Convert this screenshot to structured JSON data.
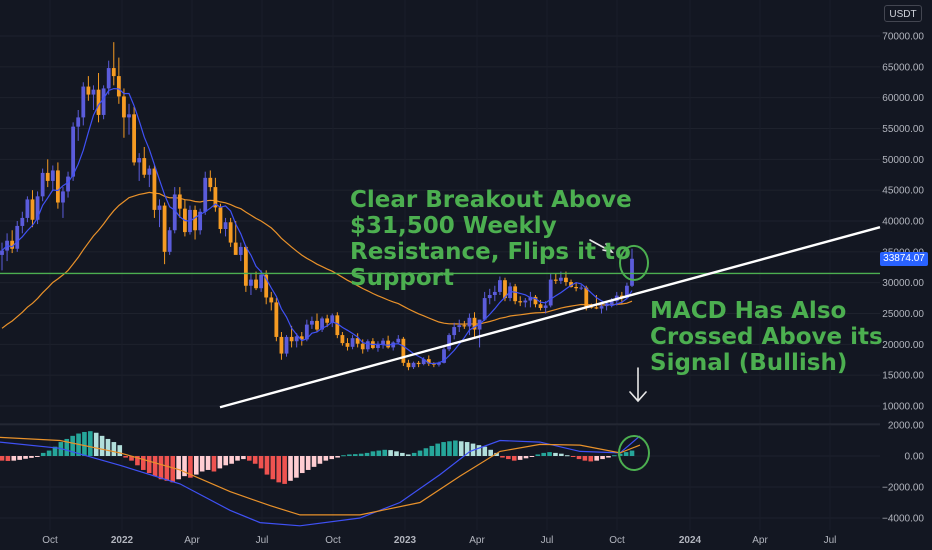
{
  "currency": "USDT",
  "current_price_label": "33874.07",
  "annotations": {
    "breakout": "Clear Breakout Above\n$31,500 Weekly\nResistance, Flips it to\nSupport",
    "macd": "MACD Has Also\nCrossed Above its\nSignal (Bullish)"
  },
  "colors": {
    "background": "#131722",
    "bull_candle": "#5b5cdb",
    "bear_candle": "#f59b23",
    "fast_ma": "#3f51f5",
    "slow_ma": "#e8912a",
    "resistance_line": "#4caf50",
    "trend_line": "#ffffff",
    "hist_up_strong": "#26a69a",
    "hist_up_weak": "#b2dfdb",
    "hist_down_strong": "#ef5350",
    "hist_down_weak": "#ffcdd2",
    "circle": "#4caf50"
  },
  "chart_data": [
    {
      "type": "candlestick",
      "x_tick_labels": [
        "Oct",
        "2022",
        "Apr",
        "Jul",
        "Oct",
        "2023",
        "Apr",
        "Jul",
        "Oct",
        "2024",
        "Apr",
        "Jul"
      ],
      "y_tick_labels": [
        "70000.00",
        "65000.00",
        "60000.00",
        "55000.00",
        "50000.00",
        "45000.00",
        "40000.00",
        "35000.00",
        "30000.00",
        "25000.00",
        "20000.00",
        "15000.00",
        "10000.00"
      ],
      "ylim": [
        6500,
        72000
      ],
      "resistance_level": 31500,
      "last_close": 33874.07,
      "candles_ohlc": [
        [
          34500,
          36500,
          32000,
          35200
        ],
        [
          35200,
          38000,
          33500,
          36800
        ],
        [
          36800,
          38500,
          34800,
          35500
        ],
        [
          35500,
          40000,
          35000,
          39200
        ],
        [
          39200,
          41500,
          38000,
          40500
        ],
        [
          40500,
          44000,
          39800,
          43500
        ],
        [
          43500,
          45000,
          39000,
          40200
        ],
        [
          40200,
          44800,
          39500,
          44000
        ],
        [
          44000,
          48500,
          43200,
          47800
        ],
        [
          47800,
          50000,
          45500,
          46500
        ],
        [
          46500,
          49000,
          45000,
          48200
        ],
        [
          48200,
          49500,
          42000,
          43000
        ],
        [
          43000,
          45500,
          40500,
          44800
        ],
        [
          44800,
          48000,
          43800,
          47200
        ],
        [
          47200,
          56000,
          46500,
          55300
        ],
        [
          55300,
          58000,
          53000,
          56800
        ],
        [
          56800,
          62500,
          55500,
          61800
        ],
        [
          61800,
          63500,
          59500,
          60500
        ],
        [
          60500,
          62000,
          58000,
          61300
        ],
        [
          61300,
          64000,
          56000,
          57200
        ],
        [
          57200,
          62000,
          56500,
          61500
        ],
        [
          61500,
          66000,
          60500,
          64800
        ],
        [
          64800,
          69000,
          62000,
          63500
        ],
        [
          63500,
          66500,
          59000,
          60200
        ],
        [
          60200,
          61500,
          53500,
          56800
        ],
        [
          56800,
          59000,
          54000,
          57300
        ],
        [
          57300,
          58500,
          49000,
          49500
        ],
        [
          49500,
          51000,
          46500,
          50200
        ],
        [
          50200,
          52000,
          47000,
          47500
        ],
        [
          47500,
          49000,
          45500,
          48500
        ],
        [
          48500,
          49000,
          40500,
          41800
        ],
        [
          41800,
          43500,
          39000,
          42500
        ],
        [
          42500,
          43000,
          33000,
          35000
        ],
        [
          35000,
          39000,
          34500,
          38500
        ],
        [
          38500,
          45500,
          38000,
          44300
        ],
        [
          44300,
          45500,
          40500,
          42000
        ],
        [
          42000,
          43500,
          37500,
          38200
        ],
        [
          38200,
          42500,
          37800,
          41800
        ],
        [
          41800,
          42500,
          37000,
          38500
        ],
        [
          38500,
          42000,
          37800,
          41500
        ],
        [
          41500,
          48000,
          41000,
          47000
        ],
        [
          47000,
          48200,
          44800,
          45500
        ],
        [
          45500,
          47000,
          41500,
          42200
        ],
        [
          42200,
          42800,
          38000,
          38700
        ],
        [
          38700,
          40500,
          37500,
          39800
        ],
        [
          39800,
          40500,
          35800,
          36500
        ],
        [
          36500,
          40000,
          35000,
          34500
        ],
        [
          34500,
          36500,
          33500,
          35800
        ],
        [
          35800,
          36000,
          28500,
          29500
        ],
        [
          29500,
          31500,
          28000,
          30500
        ],
        [
          30500,
          31800,
          28800,
          29100
        ],
        [
          29100,
          32000,
          28500,
          31300
        ],
        [
          31300,
          32000,
          26500,
          27600
        ],
        [
          27600,
          28500,
          25500,
          26800
        ],
        [
          26800,
          27500,
          20500,
          21200
        ],
        [
          21200,
          22000,
          17500,
          18500
        ],
        [
          18500,
          21500,
          18000,
          21200
        ],
        [
          21200,
          23000,
          19500,
          20500
        ],
        [
          20500,
          21800,
          19500,
          21300
        ],
        [
          21300,
          22000,
          19800,
          20800
        ],
        [
          20800,
          24000,
          20500,
          23200
        ],
        [
          23200,
          24500,
          22500,
          23800
        ],
        [
          23800,
          25000,
          22000,
          22400
        ],
        [
          22400,
          24500,
          22000,
          24200
        ],
        [
          24200,
          24800,
          22800,
          23500
        ],
        [
          23500,
          25000,
          22800,
          24700
        ],
        [
          24700,
          25200,
          21000,
          21500
        ],
        [
          21500,
          22000,
          19800,
          20200
        ],
        [
          20200,
          21000,
          19000,
          19600
        ],
        [
          19600,
          21500,
          19200,
          21000
        ],
        [
          21000,
          21800,
          19500,
          20100
        ],
        [
          20100,
          20800,
          18500,
          19200
        ],
        [
          19200,
          20800,
          18800,
          20500
        ],
        [
          20500,
          21000,
          19200,
          19400
        ],
        [
          19400,
          20500,
          18800,
          19900
        ],
        [
          19900,
          21000,
          19300,
          20600
        ],
        [
          20600,
          21400,
          19300,
          19500
        ],
        [
          19500,
          20500,
          19000,
          20300
        ],
        [
          20300,
          21500,
          20000,
          20900
        ],
        [
          20900,
          21200,
          16500,
          17000
        ],
        [
          17000,
          17500,
          15800,
          16300
        ],
        [
          16300,
          17200,
          16000,
          17000
        ],
        [
          17000,
          17300,
          16300,
          16800
        ],
        [
          16800,
          17900,
          16600,
          17600
        ],
        [
          17600,
          18200,
          16500,
          16900
        ],
        [
          16900,
          17100,
          16300,
          16700
        ],
        [
          16700,
          17200,
          16400,
          17000
        ],
        [
          17000,
          19500,
          16900,
          19200
        ],
        [
          19200,
          21800,
          18900,
          21500
        ],
        [
          21500,
          23500,
          20800,
          22800
        ],
        [
          22800,
          24000,
          22000,
          23100
        ],
        [
          23100,
          23800,
          22500,
          22900
        ],
        [
          22900,
          25000,
          21500,
          24300
        ],
        [
          24300,
          25200,
          21000,
          22400
        ],
        [
          22400,
          24000,
          19500,
          24000
        ],
        [
          24000,
          28500,
          23800,
          27500
        ],
        [
          27500,
          29000,
          26500,
          28000
        ],
        [
          28000,
          29500,
          27000,
          28500
        ],
        [
          28500,
          31000,
          28000,
          30400
        ],
        [
          30400,
          30800,
          27000,
          27500
        ],
        [
          27500,
          30000,
          27000,
          29400
        ],
        [
          29400,
          29800,
          26500,
          27000
        ],
        [
          27000,
          27800,
          26200,
          26800
        ],
        [
          26800,
          27500,
          26000,
          27100
        ],
        [
          27100,
          28500,
          26000,
          27700
        ],
        [
          27700,
          28000,
          26000,
          26500
        ],
        [
          26500,
          27200,
          25500,
          25900
        ],
        [
          25900,
          27000,
          25000,
          26300
        ],
        [
          26300,
          31500,
          26000,
          30500
        ],
        [
          30500,
          31500,
          29800,
          30300
        ],
        [
          30300,
          31800,
          29800,
          30800
        ],
        [
          30800,
          31800,
          29500,
          30100
        ],
        [
          30100,
          30500,
          29200,
          29300
        ],
        [
          29300,
          30000,
          28600,
          29100
        ],
        [
          29100,
          29600,
          28800,
          29200
        ],
        [
          29200,
          29500,
          25500,
          26100
        ],
        [
          26100,
          26600,
          25800,
          26000
        ],
        [
          26000,
          28000,
          25700,
          25800
        ],
        [
          25800,
          26500,
          25000,
          26200
        ],
        [
          26200,
          27000,
          25500,
          26500
        ],
        [
          26500,
          27500,
          26000,
          27000
        ],
        [
          27000,
          28500,
          26300,
          27900
        ],
        [
          27900,
          28500,
          26500,
          27500
        ],
        [
          27500,
          30000,
          27300,
          29500
        ],
        [
          29500,
          35500,
          29300,
          33874
        ]
      ]
    },
    {
      "type": "macd",
      "y_tick_labels": [
        "2000.00",
        "0.00",
        "−2000.00",
        "−4000.00"
      ],
      "ylim": [
        -4300,
        2100
      ],
      "histogram": [
        -300,
        -320,
        -300,
        -250,
        -180,
        -120,
        -60,
        200,
        350,
        600,
        900,
        1100,
        1300,
        1450,
        1550,
        1600,
        1500,
        1300,
        1100,
        900,
        700,
        -100,
        -300,
        -600,
        -900,
        -1100,
        -1300,
        -1500,
        -1600,
        -1700,
        -1500,
        -1300,
        -1400,
        -1200,
        -1000,
        -900,
        -1000,
        -800,
        -600,
        -500,
        -300,
        -200,
        -300,
        -500,
        -800,
        -1200,
        -1500,
        -1700,
        -1800,
        -1600,
        -1400,
        -1100,
        -900,
        -700,
        -500,
        -300,
        -200,
        -100,
        50,
        100,
        120,
        150,
        200,
        300,
        350,
        400,
        380,
        300,
        200,
        100,
        200,
        350,
        500,
        650,
        800,
        900,
        950,
        1000,
        950,
        900,
        800,
        700,
        600,
        400,
        200,
        -100,
        -200,
        -300,
        -250,
        -150,
        -50,
        100,
        200,
        250,
        200,
        150,
        50,
        -50,
        -200,
        -300,
        -350,
        -300,
        -200,
        -100,
        50,
        150,
        250,
        350
      ],
      "macd_line": [
        [
          0,
          900
        ],
        [
          60,
          500
        ],
        [
          120,
          -600
        ],
        [
          180,
          -1800
        ],
        [
          230,
          -3500
        ],
        [
          260,
          -4300
        ],
        [
          300,
          -4500
        ],
        [
          360,
          -4000
        ],
        [
          400,
          -3000
        ],
        [
          440,
          -1200
        ],
        [
          470,
          300
        ],
        [
          500,
          1000
        ],
        [
          540,
          900
        ],
        [
          580,
          300
        ],
        [
          620,
          200
        ],
        [
          640,
          1300
        ]
      ],
      "signal_line": [
        [
          0,
          1200
        ],
        [
          60,
          1000
        ],
        [
          120,
          200
        ],
        [
          180,
          -900
        ],
        [
          230,
          -2300
        ],
        [
          270,
          -3200
        ],
        [
          300,
          -3800
        ],
        [
          360,
          -3800
        ],
        [
          420,
          -3000
        ],
        [
          460,
          -1300
        ],
        [
          500,
          300
        ],
        [
          540,
          750
        ],
        [
          580,
          700
        ],
        [
          620,
          200
        ],
        [
          640,
          700
        ]
      ]
    }
  ]
}
